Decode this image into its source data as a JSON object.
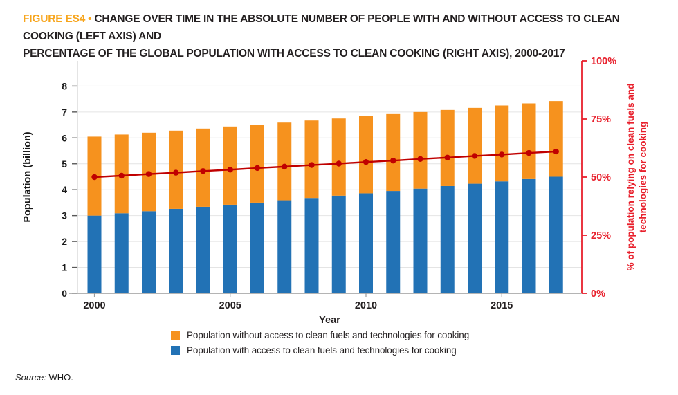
{
  "figure": {
    "label": "FIGURE ES4",
    "bullet": "•",
    "title_line1": "CHANGE OVER TIME IN THE ABSOLUTE NUMBER OF PEOPLE WITH AND WITHOUT ACCESS TO CLEAN COOKING (LEFT AXIS) AND",
    "title_line2": "PERCENTAGE OF THE GLOBAL POPULATION WITH ACCESS TO CLEAN COOKING (RIGHT AXIS), 2000-2017"
  },
  "source": {
    "prefix": "Source:",
    "text": "WHO."
  },
  "colors": {
    "figure_label_amber": "#F7A51C",
    "title_text": "#231F20",
    "bar_orange": "#F6921E",
    "bar_blue": "#2272B5",
    "line_dark_red": "#C00000",
    "right_axis_red": "#E8202C",
    "gridline_gray": "#E4E4E4",
    "baseline_gray": "#9B9B9B",
    "tick_gray": "#595959"
  },
  "chart_data": {
    "type": "bar",
    "subtype": "stacked-bars-with-percent-line",
    "x": [
      2000,
      2001,
      2002,
      2003,
      2004,
      2005,
      2006,
      2007,
      2008,
      2009,
      2010,
      2011,
      2012,
      2013,
      2014,
      2015,
      2016,
      2017
    ],
    "series": [
      {
        "name": "Population with access to clean fuels and technologies for cooking",
        "type": "bar",
        "stack_order": 1,
        "axis": "left",
        "color": "#2272B5",
        "values": [
          3.0,
          3.09,
          3.17,
          3.26,
          3.34,
          3.42,
          3.5,
          3.59,
          3.68,
          3.77,
          3.86,
          3.95,
          4.04,
          4.14,
          4.23,
          4.32,
          4.41,
          4.5
        ]
      },
      {
        "name": "Population without access to clean fuels and technologies for cooking",
        "type": "bar",
        "stack_order": 2,
        "axis": "left",
        "color": "#F6921E",
        "values": [
          3.05,
          3.04,
          3.03,
          3.02,
          3.02,
          3.02,
          3.01,
          3.0,
          2.99,
          2.98,
          2.98,
          2.97,
          2.96,
          2.94,
          2.93,
          2.93,
          2.92,
          2.92
        ]
      },
      {
        "name": "% of population relying on clean fuels and technologies for cooking",
        "type": "line",
        "axis": "right",
        "color": "#C00000",
        "values": [
          50.0,
          50.6,
          51.3,
          51.9,
          52.6,
          53.2,
          53.9,
          54.5,
          55.2,
          55.8,
          56.5,
          57.1,
          57.8,
          58.4,
          59.1,
          59.7,
          60.4,
          61.0
        ]
      }
    ],
    "left_axis": {
      "label": "Population (billion)",
      "ticks": [
        0,
        1,
        2,
        3,
        4,
        5,
        6,
        7,
        8
      ],
      "range": [
        0,
        9
      ],
      "grid": true
    },
    "right_axis": {
      "label_line1": "% of population relying on clean fuels and",
      "label_line2": "technologies for cooking",
      "ticks": [
        "0%",
        "25%",
        "50%",
        "75%",
        "100%"
      ],
      "tick_values": [
        0,
        25,
        50,
        75,
        100
      ],
      "range": [
        0,
        100
      ]
    },
    "x_axis": {
      "label": "Year",
      "tick_labels": [
        "2000",
        "2005",
        "2010",
        "2015"
      ],
      "tick_years": [
        2000,
        2005,
        2010,
        2015
      ]
    },
    "legend": [
      {
        "label": "Population without access to clean fuels and technologies for cooking",
        "color": "#F6921E"
      },
      {
        "label": "Population with access to clean fuels and technologies for cooking",
        "color": "#2272B5"
      }
    ],
    "legend_position": "bottom-center"
  }
}
